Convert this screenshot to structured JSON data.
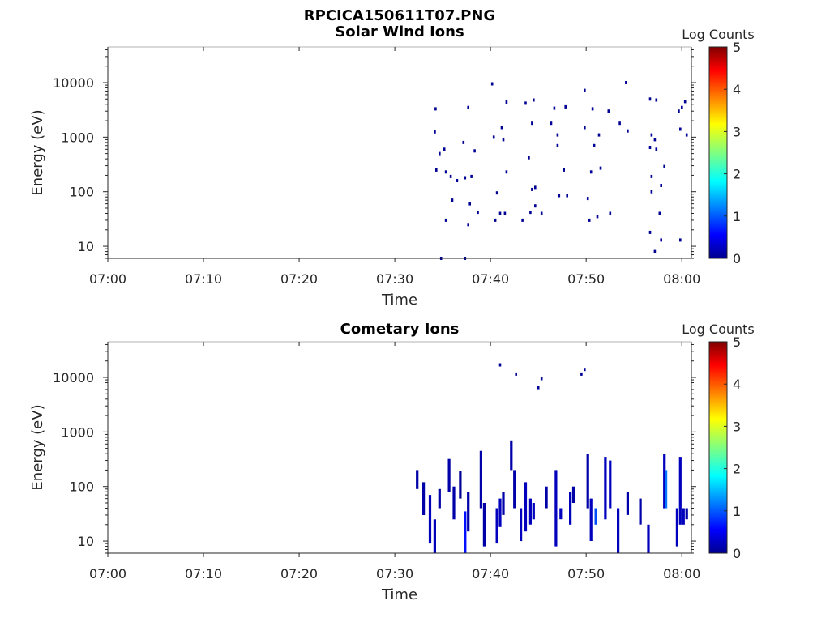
{
  "figure_title": "RPCICA150611T07.PNG",
  "chart_data": [
    {
      "type": "heatmap",
      "title": "Solar Wind Ions",
      "xlabel": "Time",
      "ylabel": "Energy (eV)",
      "x_ticks": [
        "07:00",
        "07:10",
        "07:20",
        "07:30",
        "07:40",
        "07:50",
        "08:00"
      ],
      "x_range": [
        "07:00",
        "08:01"
      ],
      "y_scale": "log",
      "y_ticks": [
        10,
        100,
        1000,
        10000
      ],
      "y_tick_labels": [
        "10",
        "100",
        "1000",
        "10000"
      ],
      "y_range": [
        6,
        45000
      ],
      "colorbar": {
        "label": "Log Counts",
        "ticks": [
          "0",
          "1",
          "2",
          "3",
          "4",
          "5"
        ],
        "range": [
          0,
          5
        ]
      },
      "points": [
        {
          "t": "07:34:15",
          "e": 3300,
          "v": 0.1
        },
        {
          "t": "07:34:10",
          "e": 1250,
          "v": 0.1
        },
        {
          "t": "07:34:40",
          "e": 500,
          "v": 0.1
        },
        {
          "t": "07:35:10",
          "e": 600,
          "v": 0.1
        },
        {
          "t": "07:34:20",
          "e": 250,
          "v": 0.1
        },
        {
          "t": "07:35:20",
          "e": 230,
          "v": 0.1
        },
        {
          "t": "07:35:50",
          "e": 190,
          "v": 0.1
        },
        {
          "t": "07:36:30",
          "e": 160,
          "v": 0.1
        },
        {
          "t": "07:36:00",
          "e": 70,
          "v": 0.1
        },
        {
          "t": "07:35:20",
          "e": 30,
          "v": 0.1
        },
        {
          "t": "07:34:50",
          "e": 6,
          "v": 0.1
        },
        {
          "t": "07:37:40",
          "e": 3500,
          "v": 0.1
        },
        {
          "t": "07:37:10",
          "e": 800,
          "v": 0.1
        },
        {
          "t": "07:38:20",
          "e": 560,
          "v": 0.1
        },
        {
          "t": "07:37:20",
          "e": 180,
          "v": 0.1
        },
        {
          "t": "07:38:00",
          "e": 190,
          "v": 0.1
        },
        {
          "t": "07:37:50",
          "e": 60,
          "v": 0.1
        },
        {
          "t": "07:38:40",
          "e": 42,
          "v": 0.1
        },
        {
          "t": "07:37:40",
          "e": 25,
          "v": 0.1
        },
        {
          "t": "07:37:20",
          "e": 6,
          "v": 0.1
        },
        {
          "t": "07:40:10",
          "e": 9500,
          "v": 0.1
        },
        {
          "t": "07:40:20",
          "e": 1000,
          "v": 0.1
        },
        {
          "t": "07:41:10",
          "e": 1500,
          "v": 0.1
        },
        {
          "t": "07:41:40",
          "e": 4400,
          "v": 0.1
        },
        {
          "t": "07:41:20",
          "e": 900,
          "v": 0.1
        },
        {
          "t": "07:41:40",
          "e": 230,
          "v": 0.1
        },
        {
          "t": "07:40:40",
          "e": 95,
          "v": 0.1
        },
        {
          "t": "07:41:00",
          "e": 40,
          "v": 0.1
        },
        {
          "t": "07:40:30",
          "e": 30,
          "v": 0.1
        },
        {
          "t": "07:41:30",
          "e": 40,
          "v": 0.1
        },
        {
          "t": "07:43:40",
          "e": 4200,
          "v": 0.1
        },
        {
          "t": "07:44:30",
          "e": 4800,
          "v": 0.1
        },
        {
          "t": "07:44:20",
          "e": 1800,
          "v": 0.1
        },
        {
          "t": "07:44:00",
          "e": 420,
          "v": 0.1
        },
        {
          "t": "07:44:20",
          "e": 110,
          "v": 0.1
        },
        {
          "t": "07:44:40",
          "e": 120,
          "v": 0.1
        },
        {
          "t": "07:43:20",
          "e": 30,
          "v": 0.1
        },
        {
          "t": "07:44:10",
          "e": 42,
          "v": 0.1
        },
        {
          "t": "07:44:40",
          "e": 55,
          "v": 0.1
        },
        {
          "t": "07:45:20",
          "e": 40,
          "v": 0.1
        },
        {
          "t": "07:46:20",
          "e": 1800,
          "v": 0.1
        },
        {
          "t": "07:46:40",
          "e": 3400,
          "v": 0.1
        },
        {
          "t": "07:47:00",
          "e": 1100,
          "v": 0.1
        },
        {
          "t": "07:47:00",
          "e": 700,
          "v": 0.1
        },
        {
          "t": "07:47:50",
          "e": 3600,
          "v": 0.1
        },
        {
          "t": "07:47:40",
          "e": 250,
          "v": 0.1
        },
        {
          "t": "07:47:10",
          "e": 85,
          "v": 0.1
        },
        {
          "t": "07:48:00",
          "e": 85,
          "v": 0.1
        },
        {
          "t": "07:49:50",
          "e": 7200,
          "v": 0.1
        },
        {
          "t": "07:49:50",
          "e": 1500,
          "v": 0.1
        },
        {
          "t": "07:50:40",
          "e": 3300,
          "v": 0.1
        },
        {
          "t": "07:51:20",
          "e": 1100,
          "v": 0.1
        },
        {
          "t": "07:50:50",
          "e": 700,
          "v": 0.1
        },
        {
          "t": "07:50:30",
          "e": 230,
          "v": 0.1
        },
        {
          "t": "07:51:30",
          "e": 270,
          "v": 0.1
        },
        {
          "t": "07:50:10",
          "e": 75,
          "v": 0.1
        },
        {
          "t": "07:50:20",
          "e": 30,
          "v": 0.1
        },
        {
          "t": "07:51:10",
          "e": 35,
          "v": 0.1
        },
        {
          "t": "07:52:30",
          "e": 40,
          "v": 0.1
        },
        {
          "t": "07:52:20",
          "e": 3000,
          "v": 0.1
        },
        {
          "t": "07:53:30",
          "e": 1800,
          "v": 0.1
        },
        {
          "t": "07:54:20",
          "e": 1300,
          "v": 0.1
        },
        {
          "t": "07:54:10",
          "e": 10000,
          "v": 0.1
        },
        {
          "t": "07:56:40",
          "e": 5000,
          "v": 0.1
        },
        {
          "t": "07:57:20",
          "e": 4800,
          "v": 0.1
        },
        {
          "t": "07:56:50",
          "e": 1100,
          "v": 0.1
        },
        {
          "t": "07:57:10",
          "e": 900,
          "v": 0.1
        },
        {
          "t": "07:56:40",
          "e": 650,
          "v": 0.1
        },
        {
          "t": "07:57:20",
          "e": 600,
          "v": 0.1
        },
        {
          "t": "07:56:50",
          "e": 190,
          "v": 0.1
        },
        {
          "t": "07:58:10",
          "e": 290,
          "v": 0.1
        },
        {
          "t": "07:56:50",
          "e": 100,
          "v": 0.1
        },
        {
          "t": "07:57:50",
          "e": 130,
          "v": 0.1
        },
        {
          "t": "07:57:40",
          "e": 40,
          "v": 0.1
        },
        {
          "t": "07:56:40",
          "e": 18,
          "v": 0.1
        },
        {
          "t": "07:57:10",
          "e": 8,
          "v": 0.1
        },
        {
          "t": "07:57:50",
          "e": 13,
          "v": 0.1
        },
        {
          "t": "07:59:40",
          "e": 3000,
          "v": 0.1
        },
        {
          "t": "08:00:00",
          "e": 3500,
          "v": 0.1
        },
        {
          "t": "08:00:20",
          "e": 4500,
          "v": 0.1
        },
        {
          "t": "08:00:30",
          "e": 1100,
          "v": 0.1
        },
        {
          "t": "07:59:50",
          "e": 1400,
          "v": 0.1
        },
        {
          "t": "07:59:50",
          "e": 13,
          "v": 0.1
        }
      ]
    },
    {
      "type": "heatmap",
      "title": "Cometary Ions",
      "xlabel": "Time",
      "ylabel": "Energy (eV)",
      "x_ticks": [
        "07:00",
        "07:10",
        "07:20",
        "07:30",
        "07:40",
        "07:50",
        "08:00"
      ],
      "x_range": [
        "07:00",
        "08:01"
      ],
      "y_scale": "log",
      "y_ticks": [
        10,
        100,
        1000,
        10000
      ],
      "y_tick_labels": [
        "10",
        "100",
        "1000",
        "10000"
      ],
      "y_range": [
        6,
        45000
      ],
      "colorbar": {
        "label": "Log Counts",
        "ticks": [
          "0",
          "1",
          "2",
          "3",
          "4",
          "5"
        ],
        "range": [
          0,
          5
        ]
      },
      "points": [
        {
          "t": "07:41:00",
          "e": 17000,
          "v": 0.1
        },
        {
          "t": "07:42:40",
          "e": 11500,
          "v": 0.1
        },
        {
          "t": "07:45:20",
          "e": 9500,
          "v": 0.1
        },
        {
          "t": "07:45:00",
          "e": 6500,
          "v": 0.1
        },
        {
          "t": "07:49:30",
          "e": 11500,
          "v": 0.1
        },
        {
          "t": "07:49:50",
          "e": 14000,
          "v": 0.1
        }
      ],
      "bars": [
        {
          "t": "07:32:20",
          "e1": 90,
          "e2": 200,
          "v": 0.2
        },
        {
          "t": "07:33:00",
          "e1": 30,
          "e2": 120,
          "v": 0.2
        },
        {
          "t": "07:33:40",
          "e1": 9,
          "e2": 70,
          "v": 0.3
        },
        {
          "t": "07:34:10",
          "e1": 6,
          "e2": 25,
          "v": 0.3
        },
        {
          "t": "07:34:40",
          "e1": 40,
          "e2": 90,
          "v": 0.2
        },
        {
          "t": "07:35:40",
          "e1": 80,
          "e2": 320,
          "v": 0.2
        },
        {
          "t": "07:36:10",
          "e1": 25,
          "e2": 100,
          "v": 0.2
        },
        {
          "t": "07:36:50",
          "e1": 60,
          "e2": 190,
          "v": 0.1
        },
        {
          "t": "07:37:20",
          "e1": 6,
          "e2": 35,
          "v": 0.7
        },
        {
          "t": "07:37:40",
          "e1": 15,
          "e2": 80,
          "v": 0.2
        },
        {
          "t": "07:39:00",
          "e1": 40,
          "e2": 450,
          "v": 0.2
        },
        {
          "t": "07:39:20",
          "e1": 8,
          "e2": 50,
          "v": 0.2
        },
        {
          "t": "07:40:40",
          "e1": 9,
          "e2": 40,
          "v": 0.3
        },
        {
          "t": "07:41:00",
          "e1": 18,
          "e2": 60,
          "v": 0.3
        },
        {
          "t": "07:41:20",
          "e1": 30,
          "e2": 80,
          "v": 0.2
        },
        {
          "t": "07:42:10",
          "e1": 200,
          "e2": 700,
          "v": 0.2
        },
        {
          "t": "07:42:30",
          "e1": 40,
          "e2": 200,
          "v": 0.2
        },
        {
          "t": "07:43:10",
          "e1": 10,
          "e2": 40,
          "v": 0.3
        },
        {
          "t": "07:43:40",
          "e1": 15,
          "e2": 120,
          "v": 0.3
        },
        {
          "t": "07:44:10",
          "e1": 20,
          "e2": 60,
          "v": 0.3
        },
        {
          "t": "07:44:30",
          "e1": 25,
          "e2": 50,
          "v": 0.3
        },
        {
          "t": "07:45:50",
          "e1": 40,
          "e2": 100,
          "v": 0.2
        },
        {
          "t": "07:46:50",
          "e1": 8,
          "e2": 200,
          "v": 0.3
        },
        {
          "t": "07:47:20",
          "e1": 25,
          "e2": 40,
          "v": 0.3
        },
        {
          "t": "07:48:20",
          "e1": 20,
          "e2": 80,
          "v": 0.3
        },
        {
          "t": "07:48:40",
          "e1": 50,
          "e2": 100,
          "v": 0.2
        },
        {
          "t": "07:50:10",
          "e1": 40,
          "e2": 400,
          "v": 0.2
        },
        {
          "t": "07:50:30",
          "e1": 10,
          "e2": 60,
          "v": 0.3
        },
        {
          "t": "07:51:00",
          "e1": 20,
          "e2": 40,
          "v": 1.0
        },
        {
          "t": "07:52:00",
          "e1": 25,
          "e2": 350,
          "v": 0.3
        },
        {
          "t": "07:52:30",
          "e1": 40,
          "e2": 300,
          "v": 0.3
        },
        {
          "t": "07:53:20",
          "e1": 6,
          "e2": 40,
          "v": 0.3
        },
        {
          "t": "07:54:20",
          "e1": 30,
          "e2": 80,
          "v": 0.2
        },
        {
          "t": "07:55:40",
          "e1": 20,
          "e2": 60,
          "v": 0.2
        },
        {
          "t": "07:56:30",
          "e1": 6,
          "e2": 20,
          "v": 0.3
        },
        {
          "t": "07:58:10",
          "e1": 40,
          "e2": 400,
          "v": 0.3
        },
        {
          "t": "07:58:20",
          "e1": 40,
          "e2": 200,
          "v": 1.2
        },
        {
          "t": "07:59:30",
          "e1": 8,
          "e2": 40,
          "v": 0.3
        },
        {
          "t": "07:59:50",
          "e1": 20,
          "e2": 350,
          "v": 0.3
        },
        {
          "t": "08:00:10",
          "e1": 20,
          "e2": 40,
          "v": 0.3
        },
        {
          "t": "08:00:30",
          "e1": 25,
          "e2": 40,
          "v": 0.2
        }
      ]
    }
  ]
}
